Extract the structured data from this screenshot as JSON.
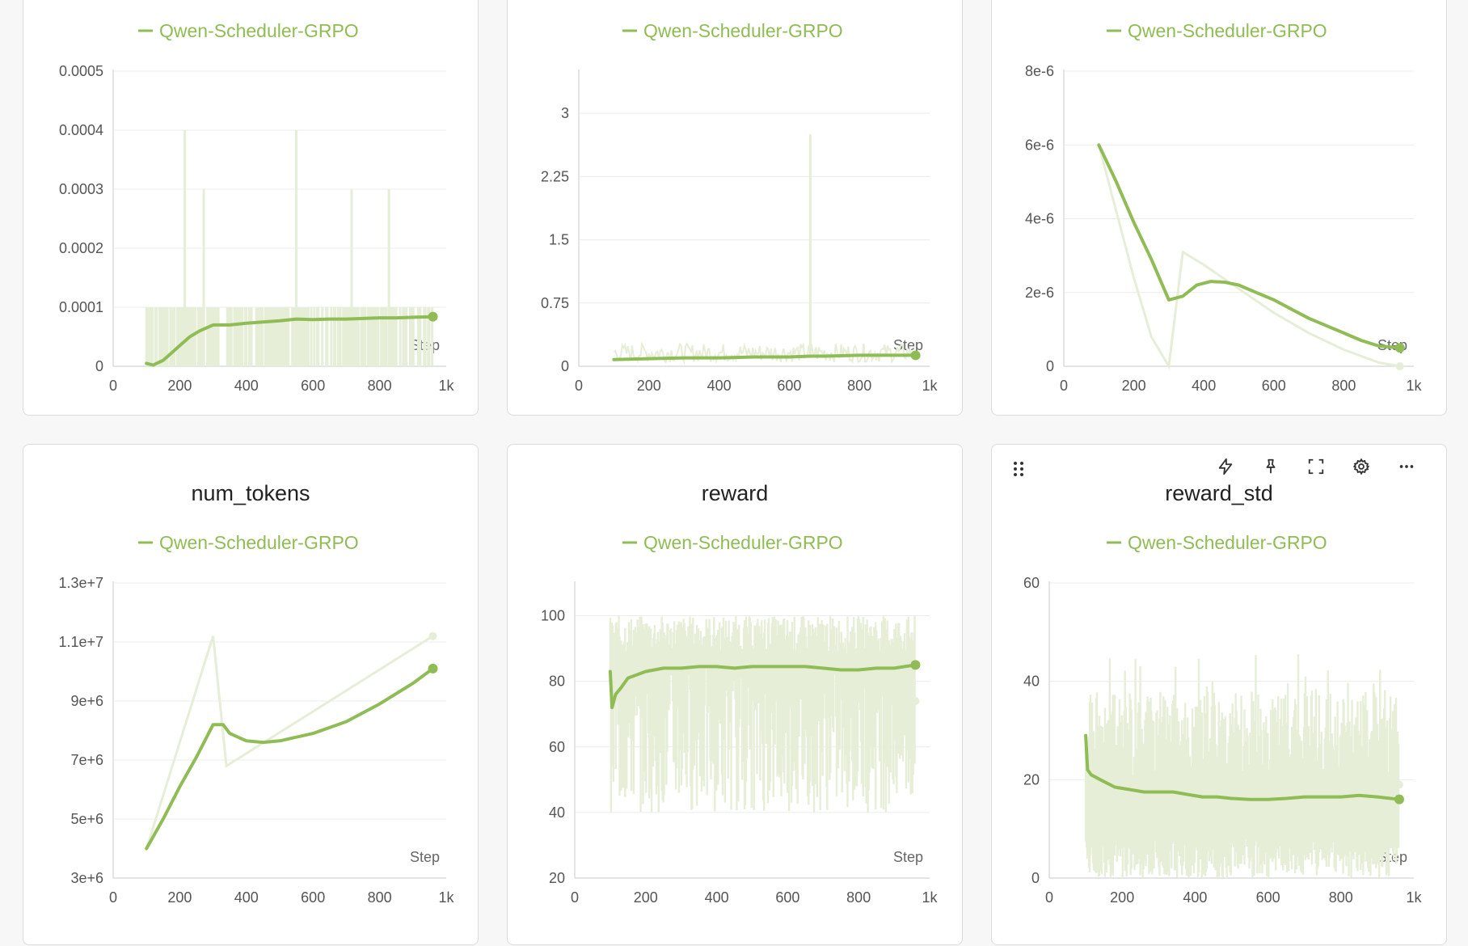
{
  "colors": {
    "line": "#8fbc55",
    "raw": "#e6eed8",
    "grid": "#ececec",
    "axis": "#dcdcdc",
    "tick": "#555555"
  },
  "charts": [
    {
      "title": "",
      "legend": "Qwen-Scheduler-GRPO",
      "step_label": "Step",
      "xticks": [
        "0",
        "200",
        "400",
        "600",
        "800",
        "1k"
      ],
      "yticks": [
        "0",
        "0.0001",
        "0.0002",
        "0.0003",
        "0.0004",
        "0.0005"
      ]
    },
    {
      "title": "",
      "legend": "Qwen-Scheduler-GRPO",
      "step_label": "Step",
      "xticks": [
        "0",
        "200",
        "400",
        "600",
        "800",
        "1k"
      ],
      "yticks": [
        "0",
        "0.75",
        "1.5",
        "2.25",
        "3"
      ]
    },
    {
      "title": "",
      "legend": "Qwen-Scheduler-GRPO",
      "step_label": "Step",
      "xticks": [
        "0",
        "200",
        "400",
        "600",
        "800",
        "1k"
      ],
      "yticks": [
        "0",
        "2e-6",
        "4e-6",
        "6e-6",
        "8e-6"
      ]
    },
    {
      "title": "num_tokens",
      "legend": "Qwen-Scheduler-GRPO",
      "step_label": "Step",
      "xticks": [
        "0",
        "200",
        "400",
        "600",
        "800",
        "1k"
      ],
      "yticks": [
        "3e+6",
        "5e+6",
        "7e+6",
        "9e+6",
        "1.1e+7",
        "1.3e+7"
      ]
    },
    {
      "title": "reward",
      "legend": "Qwen-Scheduler-GRPO",
      "step_label": "Step",
      "xticks": [
        "0",
        "200",
        "400",
        "600",
        "800",
        "1k"
      ],
      "yticks": [
        "20",
        "40",
        "60",
        "80",
        "100"
      ]
    },
    {
      "title": "reward_std",
      "legend": "Qwen-Scheduler-GRPO",
      "step_label": "Step",
      "xticks": [
        "0",
        "200",
        "400",
        "600",
        "800",
        "1k"
      ],
      "yticks": [
        "0",
        "20",
        "40",
        "60"
      ]
    }
  ],
  "toolbar": {
    "icons": [
      "lightning-icon",
      "pin-icon",
      "fullscreen-icon",
      "gear-icon",
      "more-icon"
    ]
  },
  "chart_data": [
    {
      "type": "line",
      "title": "",
      "xlabel": "Step",
      "xlim": [
        0,
        1000
      ],
      "ylim": [
        0,
        0.0005
      ],
      "series": [
        {
          "name": "Qwen-Scheduler-GRPO",
          "x": [
            100,
            120,
            150,
            180,
            200,
            230,
            260,
            300,
            350,
            400,
            450,
            500,
            550,
            600,
            650,
            700,
            750,
            800,
            850,
            900,
            960
          ],
          "y": [
            5e-06,
            2e-06,
            1e-05,
            2.5e-05,
            3.5e-05,
            5e-05,
            6e-05,
            7e-05,
            7e-05,
            7.3e-05,
            7.5e-05,
            7.7e-05,
            8e-05,
            7.9e-05,
            8e-05,
            8e-05,
            8.1e-05,
            8.2e-05,
            8.2e-05,
            8.3e-05,
            8.4e-05
          ],
          "raw_y": [
            0.0001,
            0,
            0.0001,
            0.0004,
            0.0001,
            0.0003,
            0.0001,
            0,
            0.0001,
            0.0004,
            0.0001,
            0.0003,
            0.0001,
            0.0001,
            0
          ]
        }
      ]
    },
    {
      "type": "line",
      "title": "",
      "xlabel": "Step",
      "xlim": [
        0,
        1000
      ],
      "ylim": [
        0,
        3.5
      ],
      "series": [
        {
          "name": "Qwen-Scheduler-GRPO",
          "x": [
            100,
            200,
            300,
            400,
            500,
            600,
            660,
            700,
            800,
            900,
            960
          ],
          "y": [
            0.08,
            0.09,
            0.1,
            0.1,
            0.11,
            0.11,
            0.12,
            0.12,
            0.13,
            0.13,
            0.13
          ],
          "raw_spike": {
            "x": 660,
            "y": 2.75
          }
        }
      ]
    },
    {
      "type": "line",
      "title": "",
      "xlabel": "Step",
      "xlim": [
        0,
        1000
      ],
      "ylim": [
        0,
        8e-06
      ],
      "series": [
        {
          "name": "Qwen-Scheduler-GRPO",
          "x": [
            100,
            150,
            200,
            250,
            300,
            340,
            380,
            420,
            460,
            500,
            550,
            600,
            650,
            700,
            750,
            800,
            850,
            900,
            960
          ],
          "y": [
            6e-06,
            5e-06,
            3.9e-06,
            2.9e-06,
            1.8e-06,
            1.9e-06,
            2.2e-06,
            2.3e-06,
            2.28e-06,
            2.2e-06,
            2e-06,
            1.8e-06,
            1.55e-06,
            1.3e-06,
            1.1e-06,
            9e-07,
            7e-07,
            5.5e-07,
            5e-07
          ],
          "raw_x": [
            100,
            150,
            200,
            250,
            300,
            340,
            400,
            500,
            600,
            700,
            800,
            900,
            960
          ],
          "raw_y": [
            6e-06,
            4.2e-06,
            2.4e-06,
            8e-07,
            0,
            3.1e-06,
            2.75e-06,
            2.1e-06,
            1.45e-06,
            9e-07,
            4.5e-07,
            1e-07,
            0
          ]
        }
      ]
    },
    {
      "type": "line",
      "title": "num_tokens",
      "xlabel": "Step",
      "xlim": [
        0,
        1000
      ],
      "ylim": [
        3000000.0,
        13000000.0
      ],
      "series": [
        {
          "name": "Qwen-Scheduler-GRPO",
          "x": [
            100,
            150,
            200,
            250,
            300,
            330,
            350,
            400,
            450,
            500,
            600,
            700,
            800,
            900,
            960
          ],
          "y": [
            4000000.0,
            5000000.0,
            6100000.0,
            7100000.0,
            8200000.0,
            8200000.0,
            7900000.0,
            7650000.0,
            7600000.0,
            7650000.0,
            7900000.0,
            8300000.0,
            8900000.0,
            9600000.0,
            10100000.0
          ],
          "raw_x": [
            100,
            300,
            340,
            960
          ],
          "raw_y": [
            4000000.0,
            11200000.0,
            6800000.0,
            11200000.0
          ]
        }
      ]
    },
    {
      "type": "line",
      "title": "reward",
      "xlabel": "Step",
      "xlim": [
        0,
        1000
      ],
      "ylim": [
        20,
        110
      ],
      "series": [
        {
          "name": "Qwen-Scheduler-GRPO",
          "x": [
            100,
            105,
            115,
            130,
            150,
            200,
            250,
            300,
            350,
            400,
            450,
            500,
            550,
            600,
            650,
            700,
            750,
            800,
            850,
            900,
            960
          ],
          "y": [
            83,
            72,
            76,
            78,
            81,
            83,
            84,
            84,
            84.5,
            84.5,
            84,
            84.5,
            84.5,
            84.5,
            84.5,
            84,
            83.5,
            83.5,
            84,
            84,
            85
          ]
        }
      ]
    },
    {
      "type": "line",
      "title": "reward_std",
      "xlabel": "Step",
      "xlim": [
        0,
        1000
      ],
      "ylim": [
        0,
        60
      ],
      "series": [
        {
          "name": "Qwen-Scheduler-GRPO",
          "x": [
            100,
            105,
            115,
            140,
            180,
            220,
            260,
            300,
            340,
            380,
            420,
            460,
            500,
            550,
            600,
            650,
            700,
            750,
            800,
            850,
            900,
            960
          ],
          "y": [
            29,
            22,
            21,
            20,
            18.5,
            18,
            17.5,
            17.5,
            17.5,
            17,
            16.5,
            16.5,
            16.2,
            16,
            16,
            16.2,
            16.5,
            16.5,
            16.5,
            16.8,
            16.5,
            16
          ]
        }
      ]
    }
  ]
}
